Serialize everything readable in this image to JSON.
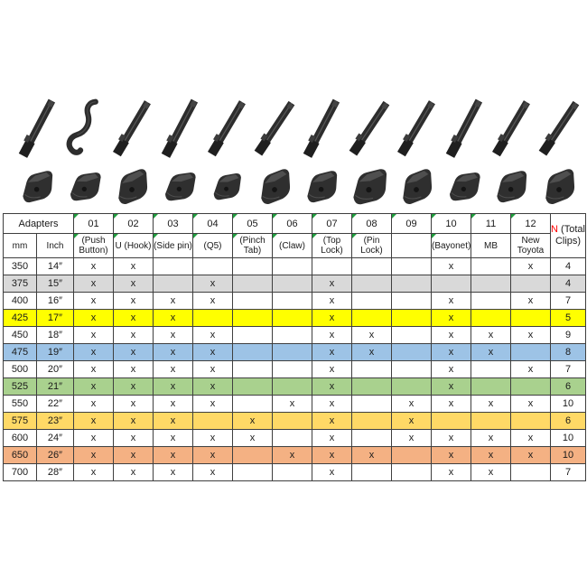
{
  "chart_data": {
    "type": "table",
    "corner_label": "Adapters",
    "mm_label": "mm",
    "inch_label": "Inch",
    "total_label": {
      "n": "N",
      "rest": " (Total Clips)"
    },
    "mark": "x",
    "adapters": [
      {
        "num": "01",
        "name": "(Push Button)",
        "marker_sub": true,
        "photo": "push-button"
      },
      {
        "num": "02",
        "name": "U (Hook)",
        "marker_sub": true,
        "photo": "u-hook"
      },
      {
        "num": "03",
        "name": "(Side pin)",
        "marker_sub": true,
        "photo": "side-pin"
      },
      {
        "num": "04",
        "name": "(Q5)",
        "marker_sub": true,
        "photo": "q5"
      },
      {
        "num": "05",
        "name": "(Pinch Tab)",
        "marker_sub": true,
        "photo": "pinch-tab"
      },
      {
        "num": "06",
        "name": "(Claw)",
        "marker_sub": true,
        "photo": "claw"
      },
      {
        "num": "07",
        "name": "(Top Lock)",
        "marker_sub": true,
        "photo": "top-lock"
      },
      {
        "num": "08",
        "name": "(Pin Lock)",
        "marker_sub": true,
        "photo": "pin-lock"
      },
      {
        "num": "09",
        "name": "",
        "marker_sub": false,
        "photo": "adapter-09"
      },
      {
        "num": "10",
        "name": "(Bayonet)",
        "marker_sub": true,
        "photo": "bayonet"
      },
      {
        "num": "11",
        "name": "MB",
        "marker_sub": false,
        "photo": "mb"
      },
      {
        "num": "12",
        "name": "New Toyota",
        "marker_sub": false,
        "photo": "new-toyota"
      }
    ],
    "rows": [
      {
        "mm": "350",
        "inch": "14″",
        "marks": [
          1,
          1,
          0,
          0,
          0,
          0,
          0,
          0,
          0,
          1,
          0,
          1
        ],
        "total": "4",
        "bg": "#ffffff"
      },
      {
        "mm": "375",
        "inch": "15″",
        "marks": [
          1,
          1,
          0,
          1,
          0,
          0,
          1,
          0,
          0,
          0,
          0,
          0
        ],
        "total": "4",
        "bg": "#d9d9d9"
      },
      {
        "mm": "400",
        "inch": "16″",
        "marks": [
          1,
          1,
          1,
          1,
          0,
          0,
          1,
          0,
          0,
          1,
          0,
          1
        ],
        "total": "7",
        "bg": "#ffffff"
      },
      {
        "mm": "425",
        "inch": "17″",
        "marks": [
          1,
          1,
          1,
          0,
          0,
          0,
          1,
          0,
          0,
          1,
          0,
          0
        ],
        "total": "5",
        "bg": "#ffff00"
      },
      {
        "mm": "450",
        "inch": "18″",
        "marks": [
          1,
          1,
          1,
          1,
          0,
          0,
          1,
          1,
          0,
          1,
          1,
          1
        ],
        "total": "9",
        "bg": "#ffffff"
      },
      {
        "mm": "475",
        "inch": "19″",
        "marks": [
          1,
          1,
          1,
          1,
          0,
          0,
          1,
          1,
          0,
          1,
          1,
          0
        ],
        "total": "8",
        "bg": "#9dc3e6"
      },
      {
        "mm": "500",
        "inch": "20″",
        "marks": [
          1,
          1,
          1,
          1,
          0,
          0,
          1,
          0,
          0,
          1,
          0,
          1
        ],
        "total": "7",
        "bg": "#ffffff"
      },
      {
        "mm": "525",
        "inch": "21″",
        "marks": [
          1,
          1,
          1,
          1,
          0,
          0,
          1,
          0,
          0,
          1,
          0,
          0
        ],
        "total": "6",
        "bg": "#a9d18e"
      },
      {
        "mm": "550",
        "inch": "22″",
        "marks": [
          1,
          1,
          1,
          1,
          0,
          1,
          1,
          0,
          1,
          1,
          1,
          1
        ],
        "total": "10",
        "bg": "#ffffff"
      },
      {
        "mm": "575",
        "inch": "23″",
        "marks": [
          1,
          1,
          1,
          0,
          1,
          0,
          1,
          0,
          1,
          0,
          0,
          0
        ],
        "total": "6",
        "bg": "#ffd966"
      },
      {
        "mm": "600",
        "inch": "24″",
        "marks": [
          1,
          1,
          1,
          1,
          1,
          0,
          1,
          0,
          1,
          1,
          1,
          1
        ],
        "total": "10",
        "bg": "#ffffff"
      },
      {
        "mm": "650",
        "inch": "26″",
        "marks": [
          1,
          1,
          1,
          1,
          0,
          1,
          1,
          1,
          0,
          1,
          1,
          1
        ],
        "total": "10",
        "bg": "#f4b183"
      },
      {
        "mm": "700",
        "inch": "28″",
        "marks": [
          1,
          1,
          1,
          1,
          0,
          0,
          1,
          0,
          0,
          1,
          1,
          0
        ],
        "total": "7",
        "bg": "#ffffff"
      }
    ],
    "colors": {
      "accent_red": "#ff0000",
      "marker_green": "#1f9e3d",
      "border": "#3f3f3f",
      "row_gray": "#d9d9d9",
      "row_yellow": "#ffff00",
      "row_blue": "#9dc3e6",
      "row_green": "#a9d18e",
      "row_gold": "#ffd966",
      "row_salmon": "#f4b183"
    }
  }
}
